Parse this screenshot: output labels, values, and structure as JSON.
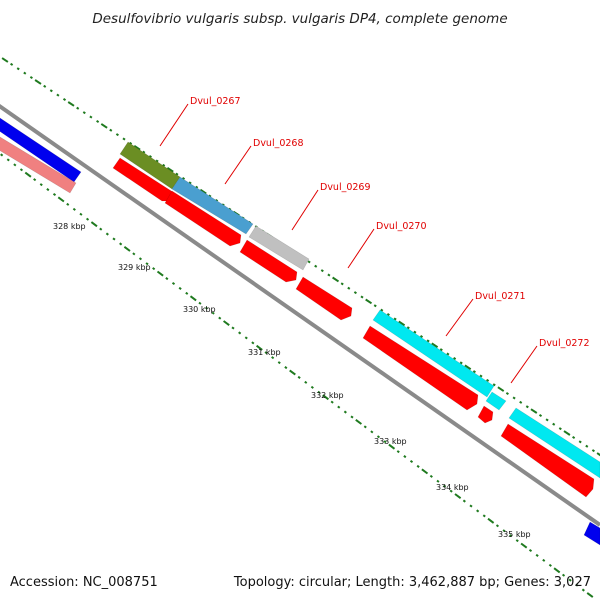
{
  "map": {
    "title": "Desulfovibrio vulgaris subsp. vulgaris DP4, complete genome",
    "accession_text": "Accession: NC_008751",
    "summary_text": "Topology: circular; Length: 3,462,887 bp; Genes: 3,027"
  },
  "scale_labels": [
    "328 kbp",
    "329 kbp",
    "330 kbp",
    "331 kbp",
    "332 kbp",
    "333 kbp",
    "334 kbp",
    "335 kbp"
  ],
  "gene_labels": [
    "Dvul_0267",
    "Dvul_0268",
    "Dvul_0269",
    "Dvul_0270",
    "Dvul_0271",
    "Dvul_0272"
  ],
  "colors": {
    "backbone": "#8a8a8a",
    "tick": "#1f7a1f",
    "label_line": "#e00000",
    "cds_reverse": "#ff0000",
    "blue": "#0000ee",
    "pink": "#f08080",
    "olive": "#6b8e23",
    "steel_blue": "#4a9fd0",
    "silver": "#c0c0c0",
    "cyan": "#00e8f0"
  }
}
